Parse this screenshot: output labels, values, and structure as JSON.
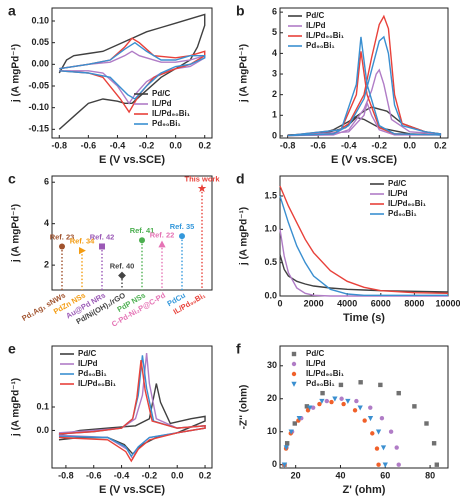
{
  "chart_data": [
    {
      "type": "line",
      "label": "a",
      "x_label": "E (V vs.SCE)",
      "y_label": "j (A mgPd⁻¹)",
      "legend": "lower right",
      "xlim": [
        -0.85,
        0.25
      ],
      "xticks": [
        -0.8,
        -0.6,
        -0.4,
        -0.2,
        {
          "value": 0,
          "label": "0.0"
        },
        0.2
      ],
      "ylim": [
        -0.17,
        0.13
      ],
      "yticks": [
        -0.15,
        {
          "value": -0.1,
          "label": "-0.10"
        },
        -0.05,
        {
          "value": 0,
          "label": "0.00"
        },
        0.05,
        {
          "value": 0.1,
          "label": "0.10"
        }
      ],
      "series": [
        {
          "name": "Pd/C",
          "color": "#404040",
          "x": [
            -0.8,
            -0.75,
            -0.7,
            -0.6,
            -0.5,
            -0.4,
            -0.3,
            -0.2,
            -0.1,
            0.0,
            0.1,
            0.2,
            0.2,
            0.15,
            0.1,
            0.0,
            -0.1,
            -0.2,
            -0.3,
            -0.35,
            -0.4,
            -0.5,
            -0.6,
            -0.7,
            -0.8
          ],
          "values": [
            -0.02,
            0.01,
            0.02,
            0.025,
            0.03,
            0.045,
            0.06,
            0.075,
            0.085,
            0.095,
            0.105,
            0.115,
            0.09,
            0.04,
            0.01,
            -0.01,
            -0.03,
            -0.06,
            -0.09,
            -0.09,
            -0.085,
            -0.08,
            -0.09,
            -0.12,
            -0.15
          ]
        },
        {
          "name": "IL/Pd",
          "color": "#b07cc6",
          "x": [
            -0.8,
            -0.6,
            -0.45,
            -0.35,
            -0.3,
            -0.25,
            -0.1,
            0.0,
            0.1,
            0.2,
            0.2,
            0.1,
            0.0,
            -0.1,
            -0.2,
            -0.28,
            -0.32,
            -0.4,
            -0.5,
            -0.6,
            -0.8
          ],
          "values": [
            -0.01,
            0.0,
            0.005,
            0.02,
            0.03,
            0.02,
            0.005,
            0.005,
            0.01,
            0.02,
            0.015,
            -0.005,
            -0.01,
            -0.02,
            -0.04,
            -0.07,
            -0.09,
            -0.05,
            -0.02,
            -0.015,
            -0.015
          ]
        },
        {
          "name": "IL/Pd₉₀Bi₁",
          "color": "#e8413a",
          "x": [
            -0.8,
            -0.6,
            -0.45,
            -0.35,
            -0.3,
            -0.25,
            -0.15,
            0.0,
            0.1,
            0.2,
            0.2,
            0.1,
            0.0,
            -0.15,
            -0.25,
            -0.32,
            -0.38,
            -0.5,
            -0.6,
            -0.8
          ],
          "values": [
            -0.01,
            0.0,
            0.01,
            0.04,
            0.06,
            0.05,
            0.02,
            0.015,
            0.02,
            0.03,
            0.02,
            0.0,
            -0.01,
            -0.03,
            -0.07,
            -0.11,
            -0.08,
            -0.03,
            -0.02,
            -0.015
          ]
        },
        {
          "name": "Pd₉₀Bi₁",
          "color": "#3a8fd0",
          "x": [
            -0.8,
            -0.6,
            -0.45,
            -0.35,
            -0.28,
            -0.2,
            -0.1,
            0.0,
            0.1,
            0.2,
            0.2,
            0.1,
            0.0,
            -0.1,
            -0.2,
            -0.28,
            -0.33,
            -0.45,
            -0.6,
            -0.8
          ],
          "values": [
            -0.01,
            0.0,
            0.01,
            0.035,
            0.05,
            0.03,
            0.01,
            0.01,
            0.02,
            0.02,
            0.015,
            0.0,
            -0.005,
            -0.02,
            -0.05,
            -0.08,
            -0.07,
            -0.03,
            -0.02,
            -0.015
          ]
        }
      ]
    },
    {
      "type": "line",
      "label": "b",
      "x_label": "E (V vs.SCE)",
      "y_label": "j (A mgPd⁻¹)",
      "legend": "upper left",
      "xlim": [
        -0.85,
        0.25
      ],
      "xticks": [
        -0.8,
        -0.6,
        -0.4,
        -0.2,
        {
          "value": 0,
          "label": "0.0"
        },
        0.2
      ],
      "ylim": [
        -0.1,
        6.2
      ],
      "yticks": [
        0,
        1,
        2,
        3,
        4,
        5,
        6
      ],
      "series": [
        {
          "name": "Pd/C",
          "color": "#404040",
          "x": [
            -0.8,
            -0.6,
            -0.5,
            -0.4,
            -0.3,
            -0.25,
            -0.15,
            -0.05,
            0.1,
            0.2,
            0.2,
            0.0,
            -0.2,
            -0.3,
            -0.35,
            -0.42,
            -0.6,
            -0.8
          ],
          "values": [
            0.05,
            0.1,
            0.3,
            0.7,
            1.2,
            1.4,
            1.2,
            0.6,
            0.2,
            0.1,
            0.05,
            0.1,
            0.4,
            0.8,
            0.9,
            0.4,
            0.05,
            0.02
          ]
        },
        {
          "name": "IL/Pd",
          "color": "#b07cc6",
          "x": [
            -0.8,
            -0.5,
            -0.4,
            -0.3,
            -0.25,
            -0.22,
            -0.2,
            -0.17,
            -0.12,
            0.0,
            0.2,
            0.2,
            -0.1,
            -0.2,
            -0.25,
            -0.28,
            -0.3,
            -0.4,
            -0.8
          ],
          "values": [
            0.02,
            0.05,
            0.3,
            1.3,
            2.2,
            3.0,
            3.2,
            2.5,
            0.8,
            0.2,
            0.1,
            0.05,
            0.05,
            0.3,
            1.0,
            1.6,
            1.0,
            0.2,
            0.02
          ]
        },
        {
          "name": "IL/Pd₉₀Bi₁",
          "color": "#e8413a",
          "x": [
            -0.8,
            -0.5,
            -0.4,
            -0.3,
            -0.25,
            -0.2,
            -0.17,
            -0.14,
            -0.1,
            -0.05,
            0.1,
            0.2,
            0.2,
            -0.1,
            -0.2,
            -0.28,
            -0.32,
            -0.35,
            -0.45,
            -0.8
          ],
          "values": [
            0.02,
            0.1,
            0.6,
            2.0,
            3.8,
            5.4,
            5.8,
            5.2,
            2.0,
            0.6,
            0.2,
            0.1,
            0.05,
            0.1,
            0.4,
            2.0,
            4.1,
            2.0,
            0.3,
            0.02
          ]
        },
        {
          "name": "Pd₉₀Bi₁",
          "color": "#3a8fd0",
          "x": [
            -0.8,
            -0.5,
            -0.4,
            -0.3,
            -0.25,
            -0.2,
            -0.17,
            -0.14,
            -0.1,
            -0.05,
            0.1,
            0.2,
            0.2,
            -0.1,
            -0.2,
            -0.28,
            -0.32,
            -0.35,
            -0.45,
            -0.8
          ],
          "values": [
            0.02,
            0.1,
            0.5,
            1.8,
            3.2,
            4.6,
            4.8,
            4.0,
            1.5,
            0.5,
            0.2,
            0.1,
            0.05,
            0.1,
            0.5,
            2.5,
            4.8,
            2.5,
            0.3,
            0.02
          ]
        }
      ]
    },
    {
      "type": "lollipop",
      "label": "c",
      "y_label": "j (A mgPd⁻¹)",
      "ylim": [
        0.8,
        6.3
      ],
      "yticks": [
        2,
        4,
        6
      ],
      "categories": [
        "Pd₁Ag₁ sNWs",
        "PdZn NSs",
        "Au@Pd NRs",
        "Pd/Ni(OH)₂/rGO",
        "PdP NSs",
        "C-Pd-Ni₂P@C-Pd",
        "PdCu",
        "IL/Pd₉₀Bi₁"
      ],
      "values": [
        2.9,
        2.7,
        2.9,
        1.5,
        3.2,
        3.0,
        3.4,
        5.7
      ],
      "point_labels": [
        "Ref. 23",
        "Ref. 34",
        "Ref. 42",
        "Ref. 40",
        "Ref. 41",
        "Ref. 22",
        "Ref. 35",
        "This work"
      ],
      "colors": [
        "#a0522d",
        "#f39c12",
        "#9b59b6",
        "#444444",
        "#4caf50",
        "#e573b5",
        "#3498db",
        "#e8413a"
      ],
      "markers": [
        "circle",
        "triangle-right",
        "square",
        "diamond",
        "circle",
        "triangle",
        "circle",
        "star"
      ]
    },
    {
      "type": "line",
      "label": "d",
      "x_label": "Time (s)",
      "y_label": "j (A mgPd⁻¹)",
      "legend": "upper right",
      "xlim": [
        0,
        10000
      ],
      "xticks": [
        0,
        2000,
        4000,
        6000,
        8000,
        10000
      ],
      "ylim": [
        0,
        1.8
      ],
      "yticks": [
        {
          "value": 0,
          "label": "0.0"
        },
        0.5,
        {
          "value": 1,
          "label": "1.0"
        },
        1.5
      ],
      "series": [
        {
          "name": "Pd/C",
          "color": "#404040",
          "x": [
            0,
            250,
            500,
            1000,
            1500,
            2000,
            3000,
            4000,
            5000,
            6000,
            8000,
            10000
          ],
          "values": [
            0.62,
            0.4,
            0.3,
            0.22,
            0.18,
            0.15,
            0.12,
            0.1,
            0.09,
            0.08,
            0.07,
            0.06
          ]
        },
        {
          "name": "IL/Pd",
          "color": "#b07cc6",
          "x": [
            0,
            250,
            500,
            1000,
            1500,
            2000,
            3000,
            4000,
            5000,
            6000,
            8000,
            10000
          ],
          "values": [
            1.0,
            0.6,
            0.35,
            0.12,
            0.04,
            0.01,
            0,
            0,
            0,
            0,
            0,
            0
          ]
        },
        {
          "name": "IL/Pd₉₀Bi₁",
          "color": "#e8413a",
          "x": [
            0,
            250,
            500,
            1000,
            1500,
            2000,
            3000,
            4000,
            5000,
            6000,
            8000,
            10000
          ],
          "values": [
            1.65,
            1.5,
            1.35,
            1.1,
            0.85,
            0.65,
            0.38,
            0.22,
            0.13,
            0.08,
            0.05,
            0.04
          ]
        },
        {
          "name": "Pd₉₀Bi₁",
          "color": "#3a8fd0",
          "x": [
            0,
            250,
            500,
            1000,
            1500,
            2000,
            3000,
            4000,
            5000,
            6000,
            8000,
            10000
          ],
          "values": [
            1.5,
            1.3,
            1.1,
            0.75,
            0.5,
            0.3,
            0.1,
            0.03,
            0.01,
            0.01,
            0.01,
            0.01
          ]
        }
      ]
    },
    {
      "type": "line",
      "label": "e",
      "x_label": "E (V vs.SCE)",
      "y_label": "j (A mgPd⁻¹)",
      "legend": "upper left",
      "xlim": [
        -0.9,
        0.25
      ],
      "xticks": [
        -0.8,
        -0.6,
        -0.4,
        -0.2,
        {
          "value": 0,
          "label": "0.0"
        },
        0.2
      ],
      "ylim": [
        -0.16,
        0.36
      ],
      "yticks": [
        {
          "value": 0,
          "label": "0.0"
        },
        0.1
      ],
      "series": [
        {
          "name": "Pd/C",
          "color": "#404040",
          "x": [
            -0.85,
            -0.7,
            -0.5,
            -0.3,
            -0.2,
            -0.15,
            -0.12,
            -0.05,
            0.1,
            0.2,
            0.2,
            0.0,
            -0.15,
            -0.25,
            -0.32,
            -0.38,
            -0.5,
            -0.7,
            -0.85
          ],
          "values": [
            -0.02,
            0.0,
            0.01,
            0.02,
            0.05,
            0.2,
            0.12,
            0.03,
            0.05,
            0.06,
            0.04,
            -0.01,
            -0.03,
            -0.06,
            -0.1,
            -0.06,
            -0.03,
            -0.03,
            -0.04
          ]
        },
        {
          "name": "IL/Pd",
          "color": "#b07cc6",
          "x": [
            -0.85,
            -0.6,
            -0.4,
            -0.3,
            -0.25,
            -0.22,
            -0.2,
            -0.15,
            0.0,
            0.2,
            0.2,
            0.0,
            -0.2,
            -0.28,
            -0.32,
            -0.36,
            -0.5,
            -0.85
          ],
          "values": [
            -0.01,
            0.0,
            0.01,
            0.05,
            0.15,
            0.33,
            0.2,
            0.05,
            0.01,
            0.02,
            0.01,
            -0.01,
            -0.03,
            -0.07,
            -0.12,
            -0.08,
            -0.03,
            -0.02
          ]
        },
        {
          "name": "Pd₉₀Bi₁",
          "color": "#3a8fd0",
          "x": [
            -0.85,
            -0.6,
            -0.4,
            -0.32,
            -0.28,
            -0.25,
            -0.22,
            -0.17,
            0.0,
            0.2,
            0.2,
            0.0,
            -0.2,
            -0.28,
            -0.33,
            -0.37,
            -0.5,
            -0.85
          ],
          "values": [
            -0.015,
            -0.005,
            0.01,
            0.05,
            0.15,
            0.32,
            0.18,
            0.04,
            0.01,
            0.02,
            0.01,
            -0.01,
            -0.03,
            -0.07,
            -0.11,
            -0.07,
            -0.03,
            -0.025
          ]
        },
        {
          "name": "IL/Pd₉₀Bi₁",
          "color": "#e8413a",
          "x": [
            -0.85,
            -0.6,
            -0.4,
            -0.32,
            -0.29,
            -0.26,
            -0.23,
            -0.18,
            0.0,
            0.2,
            0.2,
            0.0,
            -0.2,
            -0.28,
            -0.33,
            -0.37,
            -0.5,
            -0.85
          ],
          "values": [
            -0.015,
            -0.005,
            0.01,
            0.05,
            0.14,
            0.3,
            0.17,
            0.04,
            0.01,
            0.02,
            0.01,
            -0.01,
            -0.04,
            -0.08,
            -0.13,
            -0.09,
            -0.04,
            -0.03
          ]
        }
      ]
    },
    {
      "type": "scatter",
      "label": "f",
      "x_label": "Z' (ohm)",
      "y_label": "-Z'' (ohm)",
      "legend": "upper left",
      "xlim": [
        13,
        88
      ],
      "xticks": [
        20,
        40,
        60,
        80
      ],
      "ylim": [
        -1,
        36
      ],
      "yticks": [
        0,
        10,
        20,
        30
      ],
      "series": [
        {
          "name": "Pd/C",
          "color": "#707070",
          "marker": "square",
          "x": [
            15,
            16.2,
            19.6,
            25,
            32,
            40.2,
            49,
            57.8,
            66,
            73,
            78.4,
            81.8,
            83
          ],
          "values": [
            0,
            6.5,
            12.5,
            17.7,
            21.7,
            24.2,
            25,
            24.2,
            21.7,
            17.7,
            12.5,
            6.5,
            0
          ]
        },
        {
          "name": "IL/Pd",
          "color": "#b07cc6",
          "marker": "circle",
          "x": [
            15,
            15.9,
            18.4,
            22.5,
            27.8,
            33.9,
            40.5,
            47.1,
            53.3,
            58.5,
            62.6,
            65.1,
            66
          ],
          "values": [
            0,
            5.2,
            10,
            14.1,
            17.3,
            19.3,
            20,
            19.3,
            17.3,
            14.1,
            10,
            5.2,
            0
          ]
        },
        {
          "name": "IL/Pd₉₀Bi₁",
          "color": "#f0602a",
          "marker": "circle",
          "x": [
            15,
            15.7,
            17.8,
            21.2,
            25.5,
            30.6,
            36,
            41.4,
            46.5,
            50.8,
            54.2,
            56.3,
            57
          ],
          "values": [
            0,
            4.9,
            9.5,
            13.4,
            16.5,
            18.4,
            19,
            18.4,
            16.5,
            13.4,
            9.5,
            4.9,
            0
          ]
        },
        {
          "name": "Pd₉₀Bi₁",
          "color": "#3a8fd0",
          "marker": "triangle-down",
          "x": [
            15,
            15.8,
            18,
            21.6,
            26.3,
            31.7,
            37.5,
            43.3,
            48.8,
            53.4,
            57,
            59.2,
            60
          ],
          "values": [
            0,
            5.2,
            10,
            14.1,
            17.3,
            19.3,
            20,
            19.3,
            17.3,
            14.1,
            10,
            5.2,
            0
          ]
        }
      ]
    }
  ]
}
